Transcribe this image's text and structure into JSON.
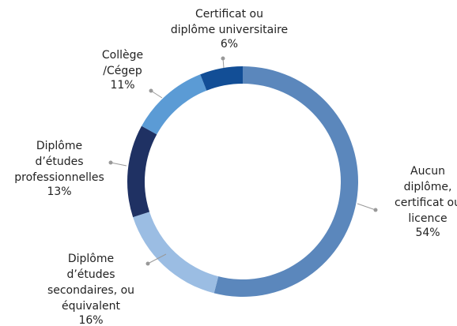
{
  "chart_data": {
    "type": "donut",
    "categories": [
      [
        "Aucun",
        "diplôme,",
        "certificat ou",
        "licence"
      ],
      [
        "Diplôme",
        "d’études",
        "secondaires, ou",
        "équivalent"
      ],
      [
        "Diplôme",
        "d’études",
        "professionnelles"
      ],
      [
        "Collège",
        "/Cégep"
      ],
      [
        "Certificat  ou",
        "diplôme universitaire"
      ]
    ],
    "values": [
      54,
      16,
      13,
      11,
      6
    ],
    "value_labels": [
      "54%",
      "16%",
      "13%",
      "11%",
      "6%"
    ],
    "colors": [
      "#5b87bc",
      "#9bbde3",
      "#1f3163",
      "#5b9bd5",
      "#124e96"
    ]
  }
}
